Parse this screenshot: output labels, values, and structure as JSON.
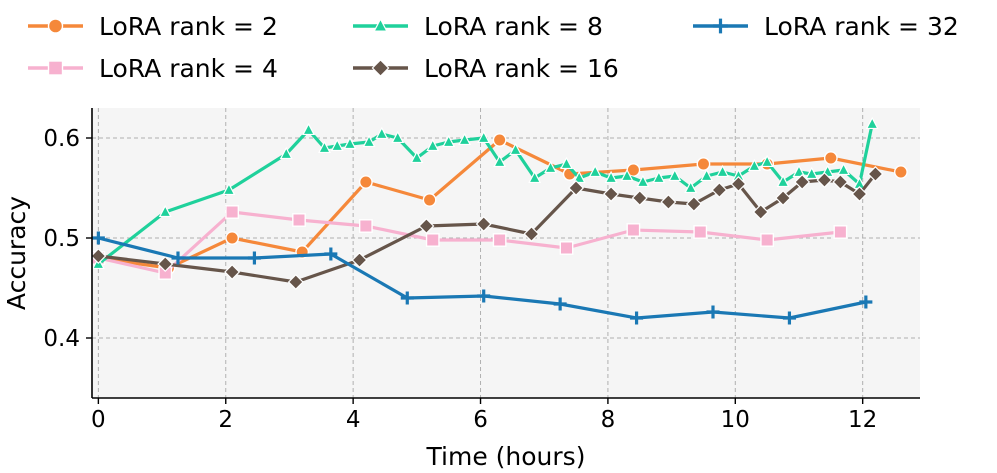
{
  "chart_data": {
    "type": "line",
    "title": "",
    "xlabel": "Time (hours)",
    "ylabel": "Accuracy",
    "xlim": [
      -0.1,
      12.9
    ],
    "ylim": [
      0.34,
      0.63
    ],
    "xticks": [
      0,
      2,
      4,
      6,
      8,
      10,
      12
    ],
    "yticks": [
      0.4,
      0.5,
      0.6
    ],
    "xtick_labels": [
      "0",
      "2",
      "4",
      "6",
      "8",
      "10",
      "12"
    ],
    "ytick_labels": [
      "0.4",
      "0.5",
      "0.6"
    ],
    "grid": true,
    "legend_position": "top",
    "series": [
      {
        "name": "LoRA rank = 2",
        "color": "#f5883a",
        "marker": "circle",
        "x": [
          0.0,
          1.1,
          2.1,
          3.2,
          4.2,
          5.2,
          6.3,
          7.4,
          8.4,
          9.5,
          10.5,
          11.5,
          12.6
        ],
        "y": [
          0.48,
          0.47,
          0.5,
          0.486,
          0.556,
          0.538,
          0.598,
          0.564,
          0.568,
          0.574,
          0.574,
          0.58,
          0.566
        ]
      },
      {
        "name": "LoRA rank = 4",
        "color": "#f7b1cf",
        "marker": "square",
        "x": [
          0.0,
          1.05,
          2.1,
          3.15,
          4.2,
          5.25,
          6.3,
          7.35,
          8.4,
          9.45,
          10.5,
          11.65
        ],
        "y": [
          0.48,
          0.465,
          0.526,
          0.518,
          0.512,
          0.498,
          0.498,
          0.49,
          0.508,
          0.506,
          0.498,
          0.506
        ]
      },
      {
        "name": "LoRA rank = 8",
        "color": "#1fd19b",
        "marker": "triangle",
        "x": [
          0.0,
          1.05,
          2.05,
          2.95,
          3.3,
          3.55,
          3.75,
          3.95,
          4.25,
          4.45,
          4.7,
          5.0,
          5.25,
          5.5,
          5.75,
          6.05,
          6.3,
          6.55,
          6.85,
          7.1,
          7.35,
          7.55,
          7.8,
          8.05,
          8.3,
          8.55,
          8.8,
          9.05,
          9.3,
          9.55,
          9.8,
          10.05,
          10.3,
          10.5,
          10.75,
          11.0,
          11.2,
          11.45,
          11.7,
          11.95,
          12.15
        ],
        "y": [
          0.474,
          0.526,
          0.548,
          0.584,
          0.608,
          0.59,
          0.592,
          0.594,
          0.596,
          0.604,
          0.6,
          0.58,
          0.592,
          0.596,
          0.598,
          0.6,
          0.576,
          0.588,
          0.56,
          0.57,
          0.574,
          0.56,
          0.566,
          0.56,
          0.562,
          0.556,
          0.56,
          0.562,
          0.55,
          0.562,
          0.566,
          0.562,
          0.572,
          0.576,
          0.556,
          0.566,
          0.564,
          0.566,
          0.568,
          0.554,
          0.614
        ]
      },
      {
        "name": "LoRA rank = 16",
        "color": "#66554a",
        "marker": "diamond",
        "x": [
          0.0,
          1.05,
          2.1,
          3.1,
          4.1,
          5.15,
          6.05,
          6.8,
          7.5,
          8.05,
          8.5,
          8.95,
          9.35,
          9.75,
          10.05,
          10.4,
          10.75,
          11.05,
          11.4,
          11.65,
          11.95,
          12.2
        ],
        "y": [
          0.482,
          0.474,
          0.466,
          0.456,
          0.478,
          0.512,
          0.514,
          0.504,
          0.55,
          0.544,
          0.54,
          0.536,
          0.534,
          0.548,
          0.554,
          0.526,
          0.54,
          0.556,
          0.558,
          0.556,
          0.544,
          0.564
        ]
      },
      {
        "name": "LoRA rank = 32",
        "color": "#1a78b4",
        "marker": "plus",
        "x": [
          0.0,
          1.25,
          2.45,
          3.65,
          4.85,
          6.05,
          7.25,
          8.45,
          9.65,
          10.85,
          12.05
        ],
        "y": [
          0.5,
          0.48,
          0.48,
          0.484,
          0.44,
          0.442,
          0.434,
          0.42,
          0.426,
          0.42,
          0.436
        ]
      }
    ]
  }
}
